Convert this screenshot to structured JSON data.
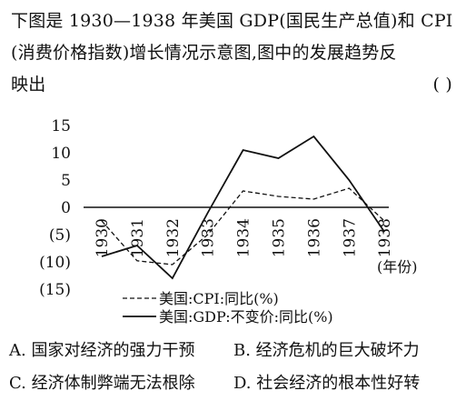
{
  "question": {
    "line1": "下图是 1930—1938 年美国 GDP(国民生产总值)和 CPI",
    "line2": "(消费价格指数)增长情况示意图,图中的发展趋势反",
    "line3": "映出",
    "answer_bracket": "(     )"
  },
  "chart_data": {
    "type": "line",
    "x": [
      1930,
      1931,
      1932,
      1933,
      1934,
      1935,
      1936,
      1937,
      1938
    ],
    "x_tick_labels": [
      "1930",
      "1931",
      "1932",
      "1933",
      "1934",
      "1935",
      "1936",
      "1937",
      "1938"
    ],
    "xlabel": "(年份)",
    "y_tick_labels": [
      "15",
      "10",
      "5",
      "0",
      "(5)",
      "(10)",
      "(15)"
    ],
    "ylim": [
      -15,
      15
    ],
    "grid": false,
    "legend_position": "bottom",
    "series": [
      {
        "name": "美国:CPI:同比(%)",
        "style": "dashed",
        "x": [
          1930,
          1931,
          1932,
          1933,
          1934,
          1935,
          1936,
          1937,
          1938
        ],
        "values": [
          -2.5,
          -9.8,
          -10.5,
          -5.0,
          3.0,
          2.0,
          1.5,
          3.5,
          -2.5
        ]
      },
      {
        "name": "美国:GDP:不变价:同比(%)",
        "style": "solid",
        "x": [
          1930,
          1931,
          1932,
          1933,
          1934,
          1935,
          1936,
          1937,
          1938
        ],
        "values": [
          -9.0,
          -7.0,
          -13.0,
          -1.0,
          10.5,
          9.0,
          13.0,
          5.0,
          -4.5
        ]
      }
    ]
  },
  "options": {
    "a": "A. 国家对经济的强力干预",
    "b": "B. 经济危机的巨大破坏力",
    "c": "C. 经济体制弊端无法根除",
    "d": "D. 社会经济的根本性好转"
  },
  "colors": {
    "ink": "#111111",
    "background": "#ffffff"
  }
}
